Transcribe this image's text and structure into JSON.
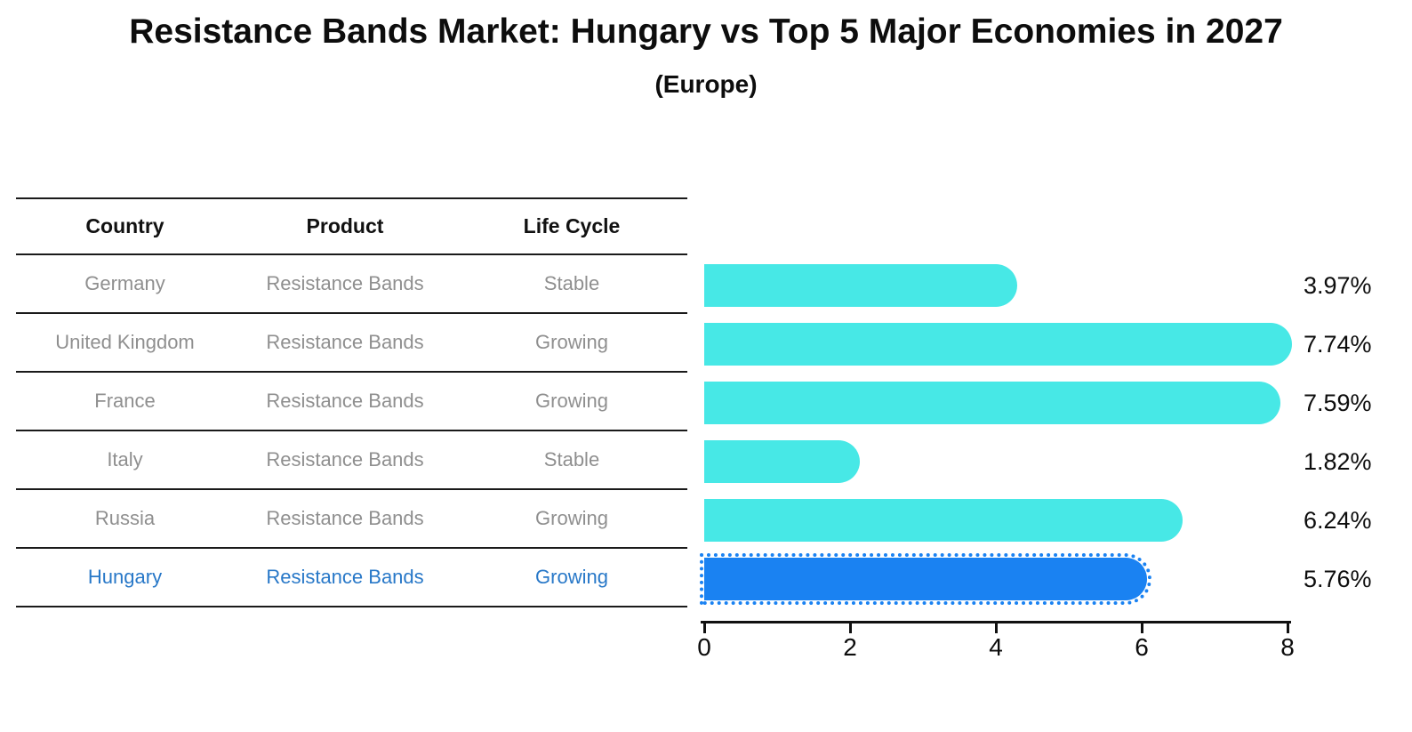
{
  "title": "Resistance Bands Market: Hungary vs Top 5 Major Economies in 2027",
  "subtitle": "(Europe)",
  "table": {
    "headers": [
      "Country",
      "Product",
      "Life Cycle"
    ],
    "rows": [
      {
        "country": "Germany",
        "product": "Resistance Bands",
        "life_cycle": "Stable",
        "highlight": false
      },
      {
        "country": "United Kingdom",
        "product": "Resistance Bands",
        "life_cycle": "Growing",
        "highlight": false
      },
      {
        "country": "France",
        "product": "Resistance Bands",
        "life_cycle": "Growing",
        "highlight": false
      },
      {
        "country": "Italy",
        "product": "Resistance Bands",
        "life_cycle": "Stable",
        "highlight": false
      },
      {
        "country": "Russia",
        "product": "Resistance Bands",
        "life_cycle": "Growing",
        "highlight": true
      },
      {
        "country": "Hungary",
        "product": "Resistance Bands",
        "life_cycle": "Growing",
        "highlight": true
      }
    ]
  },
  "chart_data": {
    "type": "bar",
    "orientation": "horizontal",
    "title": "Resistance Bands Market: Hungary vs Top 5 Major Economies in 2027 (Europe)",
    "categories": [
      "Germany",
      "United Kingdom",
      "France",
      "Italy",
      "Russia",
      "Hungary"
    ],
    "values": [
      3.97,
      7.74,
      7.59,
      1.82,
      6.24,
      5.76
    ],
    "value_labels": [
      "3.97%",
      "7.74%",
      "7.59%",
      "1.82%",
      "6.24%",
      "5.76%"
    ],
    "xlabel": "",
    "ylabel": "",
    "xlim": [
      0,
      8
    ],
    "x_ticks": [
      0,
      2,
      4,
      6,
      8
    ],
    "grid": false,
    "legend": false,
    "bar_color": "#47e8e6",
    "highlight_color": "#1a82f2",
    "highlight_index": 5
  },
  "colors": {
    "bar": "#47e8e6",
    "highlight_bar": "#1a82f2",
    "highlight_text": "#2878c8",
    "row_text": "#8f8f8f",
    "header_text": "#111111",
    "line": "#1a1a1a",
    "background": "#ffffff"
  }
}
